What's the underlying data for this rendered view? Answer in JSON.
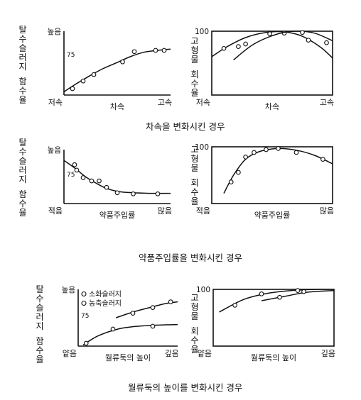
{
  "captions": {
    "row1": "차속을 변화시킨 경우",
    "row2": "약품주입률을 변화시킨 경우",
    "row3": "월류둑의 높이를 변화시킨 경우"
  },
  "chart_data": [
    {
      "id": "r1_left",
      "type": "scatter",
      "ylabel": "탈수슬러지 함수율",
      "ytop_label": "높음",
      "ytick_label": "75",
      "x_left_label": "저속",
      "x_mid_label": "차속",
      "x_right_label": "고속",
      "xlim": [
        0,
        100
      ],
      "ylim": [
        0,
        100
      ],
      "series": [
        {
          "points": [
            [
              8,
              10
            ],
            [
              18,
              22
            ],
            [
              28,
              32
            ],
            [
              55,
              52
            ],
            [
              66,
              68
            ],
            [
              86,
              70
            ],
            [
              94,
              70
            ]
          ],
          "curve": [
            [
              0,
              5
            ],
            [
              10,
              16
            ],
            [
              22,
              28
            ],
            [
              35,
              40
            ],
            [
              50,
              51
            ],
            [
              62,
              60
            ],
            [
              75,
              67
            ],
            [
              88,
              70
            ],
            [
              100,
              72
            ]
          ]
        }
      ]
    },
    {
      "id": "r1_right",
      "type": "scatter",
      "ylabel": "고형물 회수율",
      "ytop_label": "100",
      "x_left_label": "저속",
      "x_mid_label": "차속",
      "x_right_label": "고속",
      "xlim": [
        0,
        100
      ],
      "ylim": [
        0,
        100
      ],
      "series": [
        {
          "points": [
            [
              10,
              73
            ],
            [
              22,
              76
            ],
            [
              48,
              96
            ],
            [
              60,
              97
            ],
            [
              80,
              86
            ]
          ],
          "curve": [
            [
              0,
              60
            ],
            [
              12,
              75
            ],
            [
              28,
              90
            ],
            [
              45,
              98
            ],
            [
              60,
              99
            ],
            [
              75,
              92
            ],
            [
              90,
              75
            ],
            [
              100,
              58
            ]
          ]
        },
        {
          "points": [
            [
              28,
              80
            ],
            [
              75,
              98
            ],
            [
              95,
              82
            ]
          ],
          "curve": [
            [
              18,
              55
            ],
            [
              35,
              80
            ],
            [
              55,
              96
            ],
            [
              70,
              100
            ],
            [
              85,
              97
            ],
            [
              100,
              85
            ]
          ]
        }
      ]
    },
    {
      "id": "r2_left",
      "type": "scatter",
      "ylabel": "탈수슬러지 함수율",
      "ytop_label": "높음",
      "ytick_label": "75",
      "x_left_label": "적음",
      "x_mid_label": "약품주입률",
      "x_right_label": "많음",
      "xlim": [
        0,
        100
      ],
      "ylim": [
        0,
        100
      ],
      "series": [
        {
          "points": [
            [
              10,
              72
            ],
            [
              12,
              62
            ],
            [
              18,
              48
            ],
            [
              26,
              42
            ],
            [
              33,
              42
            ],
            [
              40,
              30
            ],
            [
              50,
              20
            ],
            [
              65,
              18
            ],
            [
              88,
              18
            ]
          ],
          "curve": [
            [
              0,
              80
            ],
            [
              10,
              66
            ],
            [
              20,
              50
            ],
            [
              30,
              38
            ],
            [
              40,
              28
            ],
            [
              52,
              22
            ],
            [
              65,
              20
            ],
            [
              80,
              19
            ],
            [
              100,
              19
            ]
          ]
        }
      ]
    },
    {
      "id": "r2_right",
      "type": "scatter",
      "ylabel": "고형물 회수율",
      "ytop_label": "100",
      "x_left_label": "적음",
      "x_mid_label": "약품주입률",
      "x_right_label": "많음",
      "xlim": [
        0,
        100
      ],
      "ylim": [
        0,
        100
      ],
      "series": [
        {
          "points": [
            [
              16,
              38
            ],
            [
              22,
              55
            ],
            [
              28,
              82
            ],
            [
              35,
              90
            ],
            [
              45,
              95
            ],
            [
              55,
              97
            ],
            [
              70,
              90
            ],
            [
              92,
              78
            ]
          ],
          "curve": [
            [
              10,
              18
            ],
            [
              18,
              50
            ],
            [
              28,
              78
            ],
            [
              40,
              92
            ],
            [
              55,
              97
            ],
            [
              70,
              94
            ],
            [
              85,
              85
            ],
            [
              100,
              70
            ]
          ]
        }
      ]
    },
    {
      "id": "r3_left",
      "type": "scatter",
      "ylabel": "탈수슬러지 함수율",
      "ytop_label": "높음",
      "ytick_label": "75",
      "x_left_label": "얕음",
      "x_mid_label": "월류둑의 높이",
      "x_right_label": "깊음",
      "legend": [
        "소화슬러지",
        "농축슬러지"
      ],
      "xlim": [
        0,
        100
      ],
      "ylim": [
        0,
        100
      ],
      "series": [
        {
          "name": "소화슬러지",
          "points": [
            [
              55,
              58
            ],
            [
              75,
              68
            ],
            [
              93,
              78
            ]
          ],
          "curve": [
            [
              38,
              50
            ],
            [
              55,
              60
            ],
            [
              72,
              68
            ],
            [
              88,
              75
            ],
            [
              100,
              78
            ]
          ]
        },
        {
          "name": "농축슬러지",
          "points": [
            [
              8,
              5
            ],
            [
              35,
              30
            ],
            [
              75,
              35
            ]
          ],
          "curve": [
            [
              5,
              2
            ],
            [
              20,
              18
            ],
            [
              40,
              30
            ],
            [
              60,
              35
            ],
            [
              80,
              37
            ],
            [
              100,
              38
            ]
          ]
        }
      ]
    },
    {
      "id": "r3_right",
      "type": "scatter",
      "ylabel": "고형물 회수율",
      "ytop_label": "100",
      "x_left_label": "얕음",
      "x_mid_label": "월류둑의 높이",
      "x_right_label": "깊음",
      "xlim": [
        0,
        100
      ],
      "ylim": [
        0,
        100
      ],
      "series": [
        {
          "points": [
            [
              18,
              72
            ],
            [
              40,
              92
            ],
            [
              70,
              98
            ]
          ],
          "curve": [
            [
              5,
              60
            ],
            [
              25,
              82
            ],
            [
              45,
              93
            ],
            [
              65,
              98
            ],
            [
              85,
              100
            ],
            [
              100,
              100
            ]
          ]
        },
        {
          "points": [
            [
              55,
              86
            ],
            [
              75,
              96
            ]
          ],
          "curve": [
            [
              40,
              80
            ],
            [
              60,
              88
            ],
            [
              78,
              95
            ],
            [
              100,
              98
            ]
          ]
        }
      ]
    }
  ]
}
